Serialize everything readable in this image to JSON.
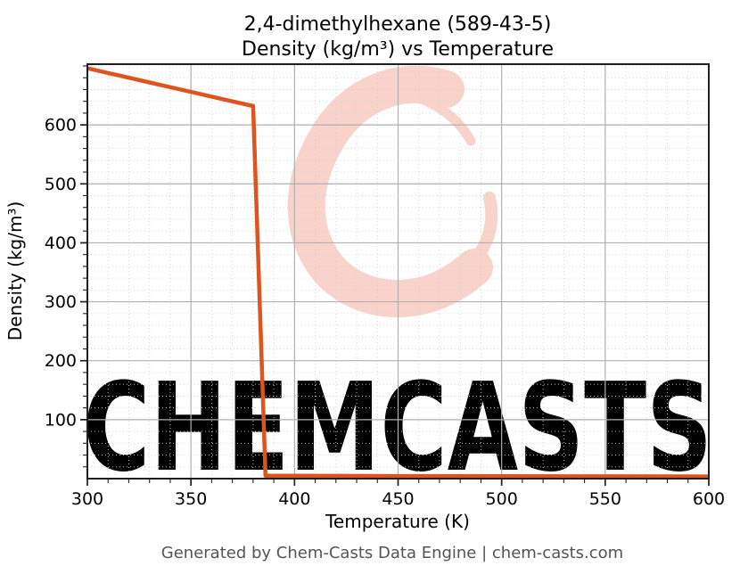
{
  "figure": {
    "title_line1": "2,4-dimethylhexane (589-43-5)",
    "title_line2": "Density (kg/m³) vs Temperature",
    "footer": "Generated by Chem-Casts Data Engine | chem-casts.com"
  },
  "watermark": {
    "text": "CHEMCASTS",
    "logo": "c-swirl-brush-mark",
    "color": "#f9d2c9"
  },
  "colors": {
    "line": "#dc551e",
    "watermark": "#f9d2c9",
    "grid_major": "#b0b0b0",
    "grid_minor": "#d2d2d2",
    "spine": "#1f1f1f",
    "tick": "#1f1f1f",
    "title_text": "#000000",
    "footer_text": "#545454",
    "background": "#ffffff"
  },
  "chart_data": {
    "type": "line",
    "title": "2,4-dimethylhexane (589-43-5) — Density (kg/m³) vs Temperature",
    "xlabel": "Temperature (K)",
    "ylabel": "Density (kg/m³)",
    "xlim": [
      300,
      600
    ],
    "ylim": [
      0,
      703
    ],
    "x_ticks": [
      300,
      350,
      400,
      450,
      500,
      550,
      600
    ],
    "y_ticks": [
      100,
      200,
      300,
      400,
      500,
      600
    ],
    "x_minor_step": 10,
    "y_minor_step": 20,
    "grid": true,
    "legend_position": "none",
    "series": [
      {
        "name": "Density (kg/m³)",
        "color": "#dc551e",
        "points": [
          [
            300,
            696
          ],
          [
            310,
            688
          ],
          [
            320,
            680
          ],
          [
            330,
            672
          ],
          [
            340,
            664
          ],
          [
            350,
            656
          ],
          [
            360,
            648
          ],
          [
            370,
            640
          ],
          [
            380,
            632
          ],
          [
            386,
            5
          ],
          [
            400,
            4.8
          ],
          [
            450,
            4.4
          ],
          [
            500,
            4.2
          ],
          [
            550,
            3.9
          ],
          [
            600,
            3.7
          ]
        ]
      }
    ]
  }
}
